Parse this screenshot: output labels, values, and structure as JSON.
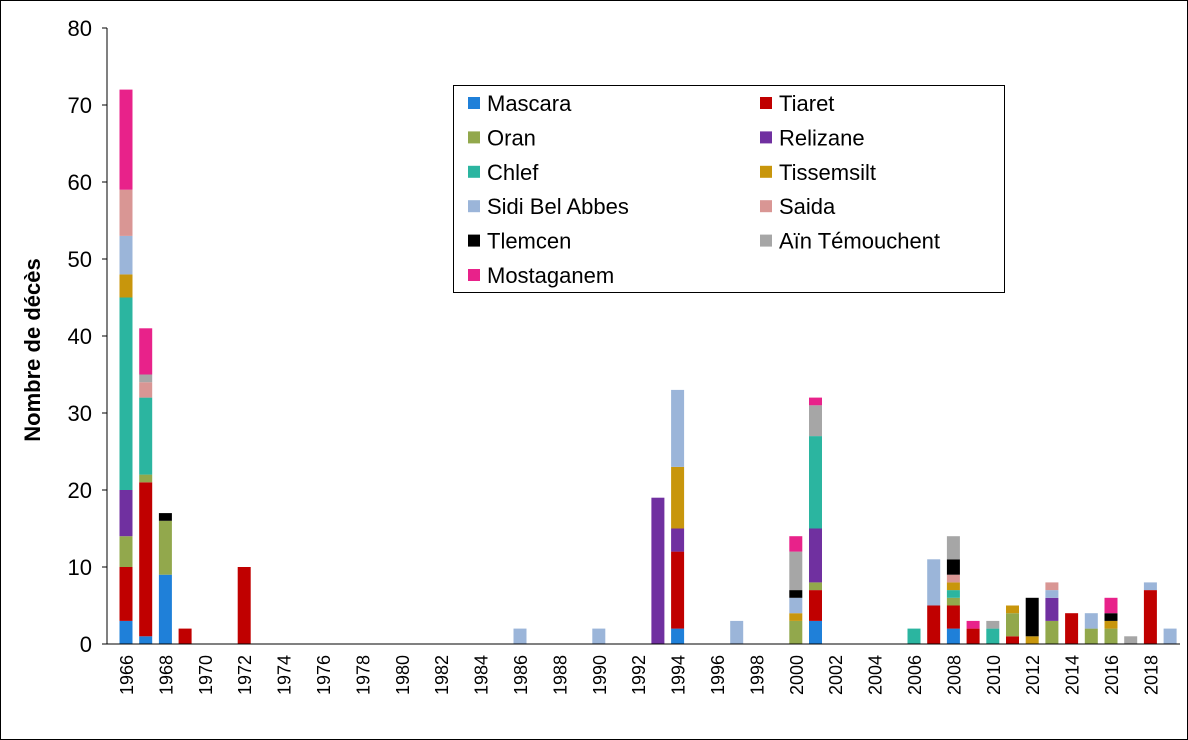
{
  "chart_data": {
    "type": "stacked_bar",
    "y_label": "Nombre de décès",
    "categories": [
      "1966",
      null,
      "1968",
      null,
      "1970",
      null,
      "1972",
      null,
      "1974",
      null,
      "1976",
      null,
      "1978",
      null,
      "1980",
      null,
      "1982",
      null,
      "1984",
      null,
      "1986",
      null,
      "1988",
      null,
      "1990",
      null,
      "1992",
      null,
      "1994",
      null,
      "1996",
      null,
      "1998",
      null,
      "2000",
      null,
      "2002",
      null,
      "2004",
      null,
      "2006",
      null,
      "2008",
      null,
      "2010",
      null,
      "2012",
      null,
      "2014",
      null,
      "2016",
      null,
      "2018",
      null
    ],
    "ylim": [
      0,
      80
    ],
    "yticks": [
      0,
      10,
      20,
      30,
      40,
      50,
      60,
      70,
      80
    ],
    "series": [
      {
        "name": "Mascara",
        "color": "#1f80d9",
        "values": [
          3,
          1,
          9,
          0,
          0,
          0,
          0,
          0,
          0,
          0,
          0,
          0,
          0,
          0,
          0,
          0,
          0,
          0,
          0,
          0,
          0,
          0,
          0,
          0,
          0,
          0,
          0,
          0,
          2,
          0,
          0,
          0,
          0,
          0,
          0,
          3,
          0,
          0,
          0,
          0,
          0,
          0,
          2,
          0,
          0,
          0,
          0,
          0,
          0,
          0,
          0,
          0,
          0,
          0
        ]
      },
      {
        "name": "Tiaret",
        "color": "#c00000",
        "values": [
          7,
          20,
          0,
          2,
          0,
          0,
          10,
          0,
          0,
          0,
          0,
          0,
          0,
          0,
          0,
          0,
          0,
          0,
          0,
          0,
          0,
          0,
          0,
          0,
          0,
          0,
          0,
          0,
          10,
          0,
          0,
          0,
          0,
          0,
          0,
          4,
          0,
          0,
          0,
          0,
          0,
          5,
          3,
          2,
          0,
          1,
          0,
          0,
          4,
          0,
          0,
          0,
          7,
          0
        ]
      },
      {
        "name": "Oran",
        "color": "#92a84c",
        "values": [
          4,
          1,
          7,
          0,
          0,
          0,
          0,
          0,
          0,
          0,
          0,
          0,
          0,
          0,
          0,
          0,
          0,
          0,
          0,
          0,
          0,
          0,
          0,
          0,
          0,
          0,
          0,
          0,
          0,
          0,
          0,
          0,
          0,
          0,
          3,
          1,
          0,
          0,
          0,
          0,
          0,
          0,
          1,
          0,
          0,
          3,
          0,
          3,
          0,
          2,
          2,
          0,
          0,
          0
        ]
      },
      {
        "name": "Relizane",
        "color": "#7030a0",
        "values": [
          6,
          0,
          0,
          0,
          0,
          0,
          0,
          0,
          0,
          0,
          0,
          0,
          0,
          0,
          0,
          0,
          0,
          0,
          0,
          0,
          0,
          0,
          0,
          0,
          0,
          0,
          0,
          19,
          3,
          0,
          0,
          0,
          0,
          0,
          0,
          7,
          0,
          0,
          0,
          0,
          0,
          0,
          0,
          0,
          0,
          0,
          0,
          3,
          0,
          0,
          0,
          0,
          0,
          0
        ]
      },
      {
        "name": "Chlef",
        "color": "#2bb5a0",
        "values": [
          25,
          10,
          0,
          0,
          0,
          0,
          0,
          0,
          0,
          0,
          0,
          0,
          0,
          0,
          0,
          0,
          0,
          0,
          0,
          0,
          0,
          0,
          0,
          0,
          0,
          0,
          0,
          0,
          0,
          0,
          0,
          0,
          0,
          0,
          0,
          12,
          0,
          0,
          0,
          0,
          2,
          0,
          1,
          0,
          2,
          0,
          0,
          0,
          0,
          0,
          0,
          0,
          0,
          0
        ]
      },
      {
        "name": "Tissemsilt",
        "color": "#c8960c",
        "values": [
          3,
          0,
          0,
          0,
          0,
          0,
          0,
          0,
          0,
          0,
          0,
          0,
          0,
          0,
          0,
          0,
          0,
          0,
          0,
          0,
          0,
          0,
          0,
          0,
          0,
          0,
          0,
          0,
          8,
          0,
          0,
          0,
          0,
          0,
          1,
          0,
          0,
          0,
          0,
          0,
          0,
          0,
          1,
          0,
          0,
          1,
          1,
          0,
          0,
          0,
          1,
          0,
          0,
          0
        ]
      },
      {
        "name": "Sidi Bel Abbes",
        "color": "#9bb5d9",
        "values": [
          5,
          0,
          0,
          0,
          0,
          0,
          0,
          0,
          0,
          0,
          0,
          0,
          0,
          0,
          0,
          0,
          0,
          0,
          0,
          0,
          2,
          0,
          0,
          0,
          2,
          0,
          0,
          0,
          10,
          0,
          0,
          3,
          0,
          0,
          2,
          0,
          0,
          0,
          0,
          0,
          0,
          6,
          0,
          0,
          0,
          0,
          0,
          1,
          0,
          2,
          0,
          0,
          1,
          2
        ]
      },
      {
        "name": "Saida",
        "color": "#d99694",
        "values": [
          6,
          2,
          0,
          0,
          0,
          0,
          0,
          0,
          0,
          0,
          0,
          0,
          0,
          0,
          0,
          0,
          0,
          0,
          0,
          0,
          0,
          0,
          0,
          0,
          0,
          0,
          0,
          0,
          0,
          0,
          0,
          0,
          0,
          0,
          0,
          0,
          0,
          0,
          0,
          0,
          0,
          0,
          1,
          0,
          0,
          0,
          0,
          1,
          0,
          0,
          0,
          0,
          0,
          0
        ]
      },
      {
        "name": "Tlemcen",
        "color": "#000000",
        "values": [
          0,
          0,
          1,
          0,
          0,
          0,
          0,
          0,
          0,
          0,
          0,
          0,
          0,
          0,
          0,
          0,
          0,
          0,
          0,
          0,
          0,
          0,
          0,
          0,
          0,
          0,
          0,
          0,
          0,
          0,
          0,
          0,
          0,
          0,
          1,
          0,
          0,
          0,
          0,
          0,
          0,
          0,
          2,
          0,
          0,
          0,
          5,
          0,
          0,
          0,
          1,
          0,
          0,
          0
        ]
      },
      {
        "name": "Aïn Témouchent",
        "color": "#a6a6a6",
        "values": [
          0,
          1,
          0,
          0,
          0,
          0,
          0,
          0,
          0,
          0,
          0,
          0,
          0,
          0,
          0,
          0,
          0,
          0,
          0,
          0,
          0,
          0,
          0,
          0,
          0,
          0,
          0,
          0,
          0,
          0,
          0,
          0,
          0,
          0,
          5,
          4,
          0,
          0,
          0,
          0,
          0,
          0,
          3,
          0,
          1,
          0,
          0,
          0,
          0,
          0,
          0,
          1,
          0,
          0
        ]
      },
      {
        "name": "Mostaganem",
        "color": "#e8228a",
        "values": [
          13,
          6,
          0,
          0,
          0,
          0,
          0,
          0,
          0,
          0,
          0,
          0,
          0,
          0,
          0,
          0,
          0,
          0,
          0,
          0,
          0,
          0,
          0,
          0,
          0,
          0,
          0,
          0,
          0,
          0,
          0,
          0,
          0,
          0,
          2,
          1,
          0,
          0,
          0,
          0,
          0,
          0,
          0,
          1,
          0,
          0,
          0,
          0,
          0,
          0,
          2,
          0,
          0,
          0
        ]
      }
    ],
    "legend": "top-center"
  }
}
